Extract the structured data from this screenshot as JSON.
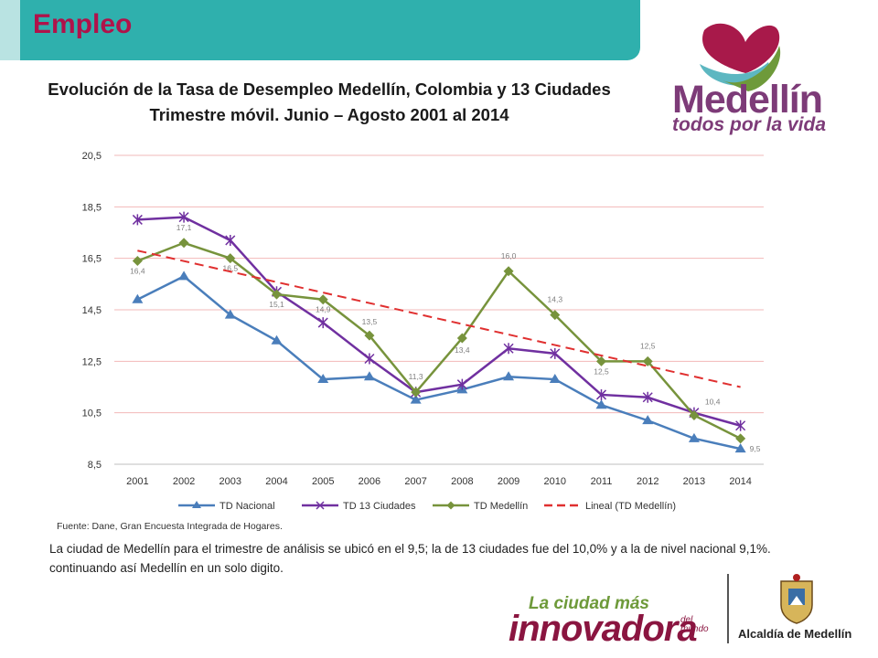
{
  "header": {
    "title": "Empleo"
  },
  "chart": {
    "title_line1": "Evolución de la Tasa de Desempleo Medellín, Colombia y 13 Ciudades",
    "title_line2": "Trimestre móvil.  Junio – Agosto 2001 al 2014"
  },
  "chart_data": {
    "type": "line",
    "title": "Evolución de la Tasa de Desempleo Medellín, Colombia y 13 Ciudades",
    "subtitle": "Trimestre móvil.  Junio – Agosto 2001 al 2014",
    "xlabel": "",
    "ylabel": "",
    "categories": [
      "2001",
      "2002",
      "2003",
      "2004",
      "2005",
      "2006",
      "2007",
      "2008",
      "2009",
      "2010",
      "2011",
      "2012",
      "2013",
      "2014"
    ],
    "ylim": [
      8.5,
      20.5
    ],
    "yticks": [
      "8,5",
      "10,5",
      "12,5",
      "14,5",
      "16,5",
      "18,5",
      "20,5"
    ],
    "grid": true,
    "legend_position": "bottom",
    "series": [
      {
        "name": "TD Nacional",
        "color": "#4a7ebb",
        "marker": "triangle",
        "values": [
          14.9,
          15.8,
          14.3,
          13.3,
          11.8,
          11.9,
          11.0,
          11.4,
          11.9,
          11.8,
          10.8,
          10.2,
          9.5,
          9.1
        ]
      },
      {
        "name": "TD 13 Ciudades",
        "color": "#7030a0",
        "marker": "star",
        "values": [
          18.0,
          18.1,
          17.2,
          15.2,
          14.0,
          12.6,
          11.3,
          11.6,
          13.0,
          12.8,
          11.2,
          11.1,
          10.5,
          10.0
        ]
      },
      {
        "name": "TD Medellín",
        "color": "#77933c",
        "marker": "diamond",
        "values": [
          16.4,
          17.1,
          16.5,
          15.1,
          14.9,
          13.5,
          11.3,
          13.4,
          16.0,
          14.3,
          12.5,
          12.5,
          10.4,
          9.5
        ],
        "labels": [
          "16,4",
          "17,1",
          "16,5",
          "15,1",
          "14,9",
          "13,5",
          "11,3",
          "13,4",
          "16,0",
          "14,3",
          "12,5",
          "12,5",
          "10,4",
          "9,5"
        ]
      },
      {
        "name": "Lineal (TD Medellín)",
        "color": "#e03030",
        "marker": "none",
        "dashed": true,
        "values": [
          16.8,
          16.4,
          16.0,
          15.6,
          15.2,
          14.8,
          14.3,
          13.9,
          13.5,
          13.1,
          12.7,
          12.3,
          11.9,
          11.5
        ]
      }
    ]
  },
  "source": "Fuente: Dane, Gran Encuesta Integrada de Hogares.",
  "paragraph": "La ciudad de Medellín para el trimestre de análisis se ubicó en el 9,5; la de 13 ciudades fue del 10,0% y a la de nivel nacional 9,1%. continuando así Medellín en un solo digito.",
  "logos": {
    "medellin_name": "Medellín",
    "medellin_slogan": "todos por la vida",
    "innovadora_top": "La ciudad más",
    "innovadora_main": "innovadora",
    "innovadora_small": "del mundo",
    "alcaldia": "Alcaldía de Medellín"
  },
  "colors": {
    "header_teal": "#2fb0ad",
    "title_red": "#b0124a",
    "brand_purple": "#7d3b78"
  }
}
